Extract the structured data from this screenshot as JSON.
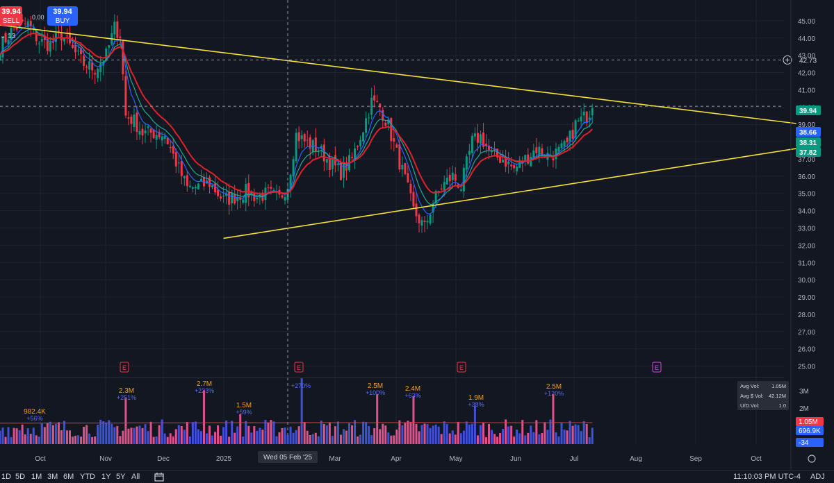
{
  "header": {
    "sell_price": "39.94",
    "sell_label": "SELL",
    "buy_price": "39.94",
    "buy_label": "BUY",
    "spread": "0.00",
    "ma_toggle": "13"
  },
  "chart_data": {
    "type": "candlestick",
    "price_axis": {
      "min": 24.5,
      "max": 45.8,
      "ticks": [
        "45.00",
        "44.00",
        "43.00",
        "42.00",
        "41.00",
        "40.00",
        "39.00",
        "38.00",
        "37.00",
        "36.00",
        "35.00",
        "34.00",
        "33.00",
        "32.00",
        "31.00",
        "30.00",
        "29.00",
        "28.00",
        "27.00",
        "26.00",
        "25.00"
      ]
    },
    "time_axis": [
      "Oct",
      "Nov",
      "Dec",
      "2025",
      "Mar",
      "Apr",
      "May",
      "Jun",
      "Jul",
      "Aug",
      "Sep",
      "Oct"
    ],
    "crosshair": {
      "date_label": "Wed 05 Feb '25",
      "price": 40.05
    },
    "horizontal_line": {
      "price": 42.73,
      "label": "42.73"
    },
    "price_labels": [
      {
        "value": "39.94",
        "color": "#089981"
      },
      {
        "value": "38.66",
        "color": "#2962ff"
      },
      {
        "value": "38.31",
        "color": "#089981"
      },
      {
        "value": "37.82",
        "color": "#089981"
      }
    ],
    "trendlines": [
      {
        "name": "upper",
        "from": {
          "day": 0,
          "price": 44.75
        },
        "to": {
          "day": 285,
          "price": 39.05
        },
        "color": "#f5e134"
      },
      {
        "name": "lower",
        "from": {
          "day": 80,
          "price": 32.4
        },
        "to": {
          "day": 285,
          "price": 37.6
        },
        "color": "#f5e134"
      }
    ],
    "earnings_markers": [
      "2024-11-06",
      "2025-02-05",
      "2025-05-07",
      "2025-08-06"
    ],
    "volume": {
      "max_scale": "3M",
      "axis_ticks": [
        "3M",
        "2M",
        "1M"
      ],
      "annotations": [
        {
          "value": "982.4K",
          "pct": "+56%"
        },
        {
          "value": "2.3M",
          "pct": "+251%"
        },
        {
          "value": "2.7M",
          "pct": "+223%"
        },
        {
          "value": "1.5M",
          "pct": "+59%"
        },
        {
          "value": "",
          "pct": "+270%"
        },
        {
          "value": "2.5M",
          "pct": "+100%"
        },
        {
          "value": "2.4M",
          "pct": "+63%"
        },
        {
          "value": "1.9M",
          "pct": "+38%"
        },
        {
          "value": "2.5M",
          "pct": "+120%"
        }
      ],
      "labels": [
        {
          "value": "1.05M",
          "color": "#f23645"
        },
        {
          "value": "696.9K",
          "color": "#2962ff"
        },
        {
          "value": "-34",
          "color": "#2962ff"
        }
      ],
      "avg_box": {
        "avg_vol_label": "Avg Vol:",
        "avg_vol": "1.05M",
        "avg_dollar_label": "Avg $ Vol:",
        "avg_dollar": "42.12M",
        "ud_label": "U/D Vol:",
        "ud": "1.0"
      }
    },
    "anchors": [
      [
        0,
        43.5
      ],
      [
        5,
        44.6
      ],
      [
        10,
        44.8
      ],
      [
        14,
        43.8
      ],
      [
        18,
        43.6
      ],
      [
        22,
        44.2
      ],
      [
        26,
        43.3
      ],
      [
        30,
        42.5
      ],
      [
        34,
        42.2
      ],
      [
        38,
        43.0
      ],
      [
        41,
        44.6
      ],
      [
        43,
        44.2
      ],
      [
        45,
        39.5
      ],
      [
        48,
        39.2
      ],
      [
        51,
        38.5
      ],
      [
        55,
        38.5
      ],
      [
        59,
        38.4
      ],
      [
        63,
        36.8
      ],
      [
        67,
        35.3
      ],
      [
        71,
        35.4
      ],
      [
        75,
        35.6
      ],
      [
        80,
        34.6
      ],
      [
        84,
        34.8
      ],
      [
        88,
        35.1
      ],
      [
        92,
        34.8
      ],
      [
        96,
        35.0
      ],
      [
        100,
        34.7
      ],
      [
        103,
        35.5
      ],
      [
        106,
        38.4
      ],
      [
        110,
        37.9
      ],
      [
        114,
        37.6
      ],
      [
        118,
        36.8
      ],
      [
        122,
        36.2
      ],
      [
        126,
        37.0
      ],
      [
        130,
        38.8
      ],
      [
        133,
        40.3
      ],
      [
        136,
        40.0
      ],
      [
        139,
        38.9
      ],
      [
        142,
        37.3
      ],
      [
        145,
        35.8
      ],
      [
        148,
        34.0
      ],
      [
        152,
        33.0
      ],
      [
        155,
        34.5
      ],
      [
        158,
        35.4
      ],
      [
        162,
        36.0
      ],
      [
        165,
        35.4
      ],
      [
        169,
        38.0
      ],
      [
        172,
        38.3
      ],
      [
        176,
        37.2
      ],
      [
        180,
        37.0
      ],
      [
        184,
        36.4
      ],
      [
        188,
        37.0
      ],
      [
        192,
        37.6
      ],
      [
        196,
        37.2
      ],
      [
        200,
        37.4
      ],
      [
        203,
        37.8
      ],
      [
        206,
        39.0
      ],
      [
        210,
        39.5
      ],
      [
        212,
        39.94
      ]
    ],
    "last_day": 212,
    "axis_end_day": 287
  },
  "bottom_bar": {
    "ranges": [
      "1D",
      "5D",
      "1M",
      "3M",
      "6M",
      "YTD",
      "1Y",
      "5Y",
      "All"
    ],
    "clock": "11:10:03 PM UTC-4",
    "adj": "ADJ"
  },
  "colors": {
    "background": "#131722",
    "up": "#089981",
    "down": "#f23645",
    "grid": "#1f2330",
    "text": "#b2b5be",
    "trend": "#f5e134"
  }
}
